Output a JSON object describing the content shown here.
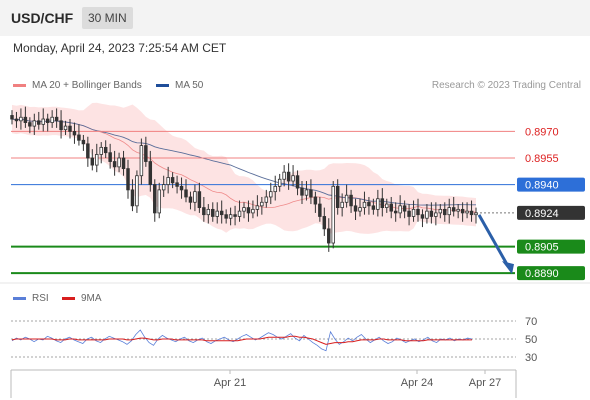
{
  "header": {
    "symbol": "USD/CHF",
    "timeframe": "30 MIN"
  },
  "datetime": "Monday, April 24, 2023 7:25:54 AM CET",
  "credit": "Research © 2023 Trading Central",
  "colors": {
    "resistance": "#f08080",
    "pivot": "#2d6fd8",
    "support": "#1a8a1a",
    "last": "#333333",
    "ma50": "#5a6e9a",
    "band": "#fde3e3",
    "ma20": "#ef8a8a",
    "rsi": "#5a7fd8",
    "rsi_ma": "#d81e1e",
    "arrow": "#2b5fa8"
  },
  "chart_data": [
    {
      "type": "candlestick",
      "legend": [
        {
          "label": "MA 20 + Bollinger Bands",
          "color": "#f08080"
        },
        {
          "label": "MA 50",
          "color": "#1f4e9a"
        }
      ],
      "ylim": [
        0.8885,
        0.899
      ],
      "levels": [
        {
          "label": "0.8970",
          "value": 0.897,
          "kind": "resistance"
        },
        {
          "label": "0.8955",
          "value": 0.8955,
          "kind": "resistance"
        },
        {
          "label": "0.8940",
          "value": 0.894,
          "kind": "pivot"
        },
        {
          "label": "0.8924",
          "value": 0.8924,
          "kind": "last"
        },
        {
          "label": "0.8905",
          "value": 0.8905,
          "kind": "support"
        },
        {
          "label": "0.8890",
          "value": 0.889,
          "kind": "support"
        }
      ],
      "x_ticks": [
        "Apr 21",
        "Apr 24",
        "Apr 27"
      ],
      "forecast_direction": "down",
      "close": [
        0.8977,
        0.8976,
        0.8978,
        0.8975,
        0.8973,
        0.8976,
        0.8974,
        0.8977,
        0.8975,
        0.8978,
        0.8976,
        0.8971,
        0.8973,
        0.897,
        0.8968,
        0.8965,
        0.8963,
        0.8955,
        0.8951,
        0.8957,
        0.8961,
        0.8958,
        0.8953,
        0.895,
        0.8955,
        0.8949,
        0.8937,
        0.8928,
        0.8945,
        0.8962,
        0.8953,
        0.894,
        0.8924,
        0.8937,
        0.894,
        0.8944,
        0.8941,
        0.8939,
        0.8937,
        0.8933,
        0.893,
        0.8936,
        0.8927,
        0.8923,
        0.8926,
        0.8922,
        0.8925,
        0.8923,
        0.8921,
        0.8923,
        0.8922,
        0.8925,
        0.8927,
        0.8924,
        0.8926,
        0.8928,
        0.893,
        0.8933,
        0.8936,
        0.8939,
        0.8943,
        0.8947,
        0.8942,
        0.8945,
        0.8938,
        0.8934,
        0.8937,
        0.8933,
        0.8929,
        0.8922,
        0.8915,
        0.8907,
        0.8939,
        0.8927,
        0.893,
        0.8934,
        0.8928,
        0.8925,
        0.8927,
        0.893,
        0.8928,
        0.8926,
        0.8932,
        0.8927,
        0.8929,
        0.8925,
        0.8924,
        0.8928,
        0.8925,
        0.8922,
        0.8926,
        0.8923,
        0.8921,
        0.8925,
        0.8922,
        0.8924,
        0.8926,
        0.8923,
        0.8927,
        0.8925,
        0.8926,
        0.8924,
        0.8925,
        0.8923,
        0.8924
      ]
    },
    {
      "type": "line",
      "legend": [
        {
          "label": "RSI",
          "color": "#5a7fd8"
        },
        {
          "label": "9MA",
          "color": "#d81e1e"
        }
      ],
      "ylim": [
        20,
        80
      ],
      "y_ticks": [
        "70",
        "50",
        "30"
      ],
      "y_tick_values": [
        70,
        50,
        30
      ],
      "series": [
        {
          "name": "RSI",
          "values": [
            48,
            51,
            49,
            52,
            50,
            47,
            50,
            49,
            53,
            51,
            48,
            46,
            50,
            52,
            49,
            47,
            45,
            50,
            52,
            48,
            46,
            50,
            53,
            51,
            49,
            47,
            44,
            48,
            55,
            60,
            52,
            46,
            43,
            50,
            54,
            51,
            49,
            47,
            50,
            52,
            48,
            46,
            49,
            51,
            47,
            45,
            48,
            50,
            52,
            49,
            47,
            50,
            53,
            55,
            52,
            49,
            51,
            54,
            57,
            55,
            52,
            50,
            53,
            56,
            51,
            48,
            54,
            50,
            46,
            43,
            39,
            37,
            58,
            50,
            44,
            47,
            51,
            48,
            52,
            55,
            50,
            46,
            49,
            52,
            48,
            45,
            47,
            51,
            49,
            46,
            48,
            50,
            47,
            49,
            52,
            48,
            46,
            50,
            49,
            51,
            48,
            50,
            49,
            51,
            50
          ]
        },
        {
          "name": "9MA",
          "values": [
            49,
            50,
            50,
            50,
            50,
            50,
            50,
            50,
            50,
            50,
            49,
            49,
            49,
            50,
            50,
            49,
            49,
            49,
            49,
            49,
            49,
            49,
            50,
            50,
            50,
            50,
            49,
            49,
            50,
            51,
            51,
            50,
            49,
            49,
            50,
            50,
            50,
            49,
            49,
            49,
            49,
            49,
            49,
            49,
            48,
            48,
            48,
            48,
            48,
            48,
            48,
            48,
            49,
            50,
            50,
            50,
            50,
            51,
            52,
            52,
            52,
            52,
            52,
            53,
            53,
            52,
            52,
            51,
            50,
            48,
            46,
            44,
            45,
            46,
            46,
            46,
            47,
            47,
            48,
            49,
            49,
            49,
            49,
            50,
            50,
            49,
            49,
            49,
            49,
            48,
            48,
            48,
            48,
            48,
            49,
            49,
            49,
            49,
            49,
            49,
            49,
            49,
            49,
            49,
            49
          ]
        }
      ]
    }
  ]
}
